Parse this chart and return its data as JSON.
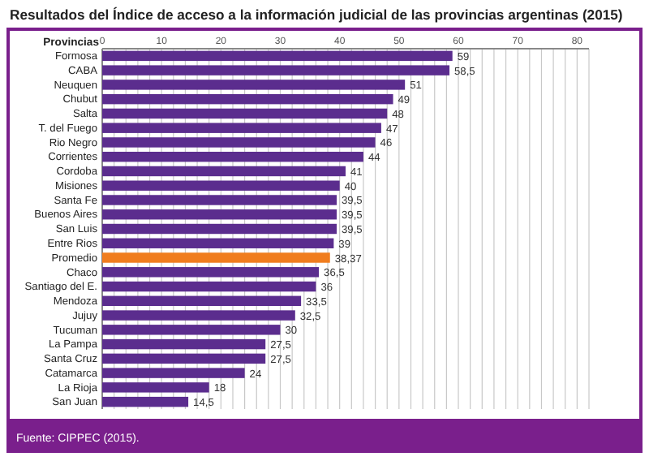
{
  "chart_data": {
    "type": "bar",
    "orientation": "horizontal",
    "title": "Resultados del Índice de acceso a la información judicial de las provincias argentinas (2015)",
    "ylabel": "Provincias",
    "categories": [
      "Formosa",
      "CABA",
      "Neuquen",
      "Chubut",
      "Salta",
      "T. del Fuego",
      "Rio Negro",
      "Corrientes",
      "Cordoba",
      "Misiones",
      "Santa Fe",
      "Buenos Aires",
      "San Luis",
      "Entre Rios",
      "Promedio",
      "Chaco",
      "Santiago del E.",
      "Mendoza",
      "Jujuy",
      "Tucuman",
      "La Pampa",
      "Santa Cruz",
      "Catamarca",
      "La Rioja",
      "San Juan"
    ],
    "values": [
      59,
      58.5,
      51,
      49,
      48,
      47,
      46,
      44,
      41,
      40,
      39.5,
      39.5,
      39.5,
      39,
      38.37,
      36.5,
      36,
      33.5,
      32.5,
      30,
      27.5,
      27.5,
      24,
      18,
      14.5
    ],
    "value_labels": [
      "59",
      "58,5",
      "51",
      "49",
      "48",
      "47",
      "46",
      "44",
      "41",
      "40",
      "39,5",
      "39,5",
      "39,5",
      "39",
      "38,37",
      "36,5",
      "36",
      "33,5",
      "32,5",
      "30",
      "27,5",
      "27,5",
      "24",
      "18",
      "14,5"
    ],
    "colors": [
      "#5b2d8e",
      "#5b2d8e",
      "#5b2d8e",
      "#5b2d8e",
      "#5b2d8e",
      "#5b2d8e",
      "#5b2d8e",
      "#5b2d8e",
      "#5b2d8e",
      "#5b2d8e",
      "#5b2d8e",
      "#5b2d8e",
      "#5b2d8e",
      "#5b2d8e",
      "#f07d1e",
      "#5b2d8e",
      "#5b2d8e",
      "#5b2d8e",
      "#5b2d8e",
      "#5b2d8e",
      "#5b2d8e",
      "#5b2d8e",
      "#5b2d8e",
      "#5b2d8e",
      "#5b2d8e"
    ],
    "xlim": [
      0,
      82
    ],
    "xticks": [
      0,
      {
        "value": 2,
        "label": null
      },
      {
        "value": 4,
        "label": null
      },
      {
        "value": 6,
        "label": null
      },
      {
        "value": 8,
        "label": null
      },
      10,
      {
        "value": 12,
        "label": null
      },
      {
        "value": 14,
        "label": null
      },
      {
        "value": 16,
        "label": null
      },
      {
        "value": 18,
        "label": null
      },
      20,
      {
        "value": 22,
        "label": null
      },
      {
        "value": 24,
        "label": null
      },
      {
        "value": 26,
        "label": null
      },
      {
        "value": 28,
        "label": null
      },
      30,
      {
        "value": 32,
        "label": null
      },
      {
        "value": 34,
        "label": null
      },
      {
        "value": 36,
        "label": null
      },
      {
        "value": 38,
        "label": null
      },
      40,
      {
        "value": 42,
        "label": null
      },
      {
        "value": 44,
        "label": null
      },
      {
        "value": 46,
        "label": null
      },
      {
        "value": 48,
        "label": null
      },
      50,
      {
        "value": 52,
        "label": null
      },
      {
        "value": 54,
        "label": null
      },
      {
        "value": 56,
        "label": null
      },
      {
        "value": 58,
        "label": null
      },
      60,
      {
        "value": 62,
        "label": null
      },
      {
        "value": 64,
        "label": null
      },
      {
        "value": 66,
        "label": null
      },
      {
        "value": 68,
        "label": null
      },
      70,
      {
        "value": 72,
        "label": null
      },
      {
        "value": 74,
        "label": null
      },
      {
        "value": 76,
        "label": null
      },
      {
        "value": 78,
        "label": null
      },
      80,
      {
        "value": 82,
        "label": null
      }
    ],
    "grid": "x",
    "annotations": [
      "Fuente: CIPPEC (2015)."
    ]
  }
}
